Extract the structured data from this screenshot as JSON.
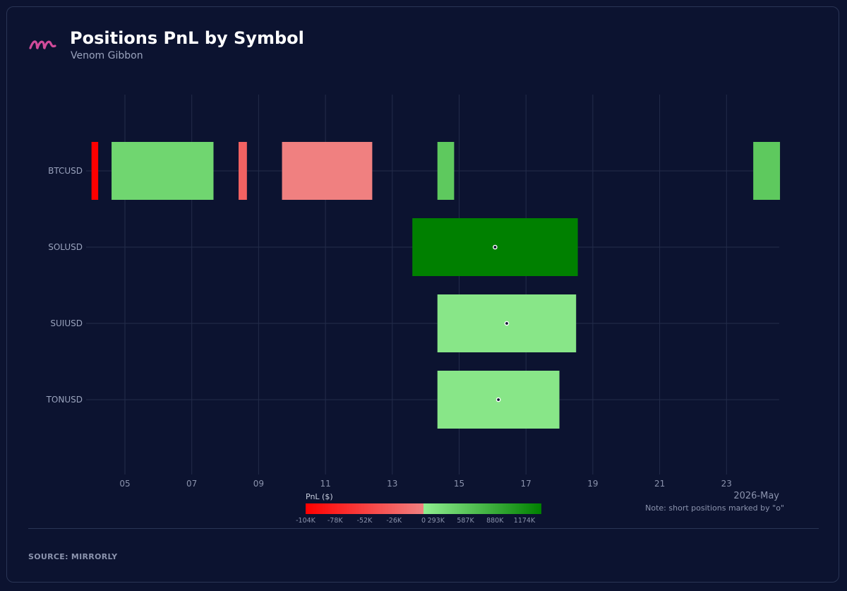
{
  "header": {
    "title": "Positions PnL by Symbol",
    "subtitle": "Venom Gibbon"
  },
  "footer": {
    "source": "SOURCE: MIRRORLY"
  },
  "colors": {
    "background": "#0c1330",
    "loss_strong": "#ff0000",
    "loss_weak": "#f08080",
    "gain_weak": "#90ee90",
    "gain_strong": "#008000",
    "accent_logo": "#d14b9a"
  },
  "chart_data": {
    "type": "timeline",
    "month_label": "2026-May",
    "note": "Note: short positions marked by \"o\"",
    "categories": [
      "BTCUSD",
      "SOLUSD",
      "SUIUSD",
      "TONUSD"
    ],
    "x_ticks": [
      {
        "day": 5,
        "label": "05"
      },
      {
        "day": 7,
        "label": "07"
      },
      {
        "day": 9,
        "label": "09"
      },
      {
        "day": 11,
        "label": "11"
      },
      {
        "day": 13,
        "label": "13"
      },
      {
        "day": 15,
        "label": "15"
      },
      {
        "day": 17,
        "label": "17"
      },
      {
        "day": 19,
        "label": "19"
      },
      {
        "day": 21,
        "label": "21"
      },
      {
        "day": 23,
        "label": "23"
      }
    ],
    "xlim": [
      3.0,
      24.6
    ],
    "grid": true,
    "positions": [
      {
        "symbol": "BTCUSD",
        "start": 4.0,
        "end": 4.2,
        "color": "#ff0000",
        "short": false
      },
      {
        "symbol": "BTCUSD",
        "start": 4.6,
        "end": 7.65,
        "color": "#70d670",
        "short": false
      },
      {
        "symbol": "BTCUSD",
        "start": 8.4,
        "end": 8.65,
        "color": "#f26262",
        "short": false
      },
      {
        "symbol": "BTCUSD",
        "start": 9.7,
        "end": 12.4,
        "color": "#f08080",
        "short": false
      },
      {
        "symbol": "BTCUSD",
        "start": 14.35,
        "end": 14.85,
        "color": "#5ec95e",
        "short": false
      },
      {
        "symbol": "BTCUSD",
        "start": 23.8,
        "end": 24.6,
        "color": "#5ec95e",
        "short": false
      },
      {
        "symbol": "SOLUSD",
        "start": 13.6,
        "end": 18.55,
        "color": "#008000",
        "short": true
      },
      {
        "symbol": "SUIUSD",
        "start": 14.35,
        "end": 18.5,
        "color": "#88e688",
        "short": true
      },
      {
        "symbol": "TONUSD",
        "start": 14.35,
        "end": 18.0,
        "color": "#88e688",
        "short": true
      }
    ],
    "colorbar": {
      "label": "PnL ($)",
      "neg_ticks": [
        "-104K",
        "-78K",
        "-52K",
        "-26K",
        "0"
      ],
      "pos_ticks": [
        "293K",
        "587K",
        "880K",
        "1174K"
      ]
    }
  }
}
